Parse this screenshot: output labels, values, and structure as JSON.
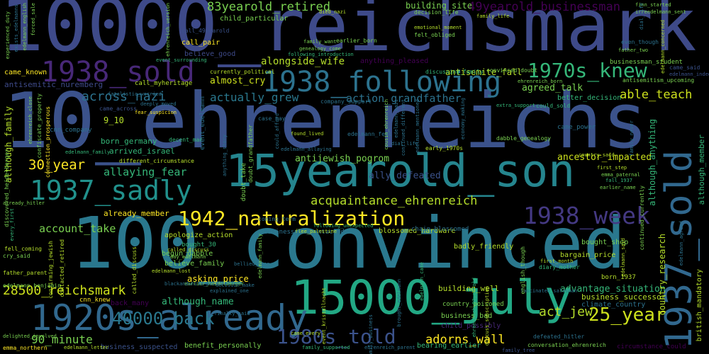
{
  "words": [
    {
      "text": "10000_reichsmark",
      "color": "#3e4a89"
    },
    {
      "text": "10_ehrenreichs",
      "color": "#3b528b"
    },
    {
      "text": "100_convinced",
      "color": "#2a788e"
    },
    {
      "text": "15yearold_son",
      "color": "#25858e"
    },
    {
      "text": "15000_july",
      "color": "#22a884"
    },
    {
      "text": "1920s_already",
      "color": "#31688e"
    },
    {
      "text": "1938_sold",
      "color": "#482878"
    },
    {
      "text": "1938_following",
      "color": "#2c728e"
    },
    {
      "text": "1937_sadly",
      "color": "#21918c"
    },
    {
      "text": "1970s_knew",
      "color": "#35b779"
    },
    {
      "text": "1942_naturalization",
      "color": "#fde725"
    },
    {
      "text": "1938_week",
      "color": "#443983"
    },
    {
      "text": "1937_sold",
      "color": "#31688e"
    },
    {
      "text": "1980s_told",
      "color": "#3b528b"
    },
    {
      "text": "83yearold_retired",
      "color": "#7ad151"
    },
    {
      "text": "49yearold_businessman",
      "color": "#440154"
    },
    {
      "text": "28500_reichsmark",
      "color": "#cde11d"
    },
    {
      "text": "40000_back",
      "color": "#2a788e"
    },
    {
      "text": "25_year",
      "color": "#cde11d"
    },
    {
      "text": "acquaintance_ehrenreich",
      "color": "#b5de2b"
    },
    {
      "text": "alongside_wife",
      "color": "#b5de2b"
    },
    {
      "text": "able_teach",
      "color": "#cde11d"
    },
    {
      "text": "30_year",
      "color": "#fde725"
    },
    {
      "text": "account_take",
      "color": "#7ad151"
    },
    {
      "text": "action_grandfather",
      "color": "#2c728e"
    },
    {
      "text": "actually_grew",
      "color": "#2a788e"
    },
    {
      "text": "across_nazi",
      "color": "#2c728e"
    },
    {
      "text": "allaying_fear",
      "color": "#35b779"
    },
    {
      "text": "adorns_wall",
      "color": "#fde725"
    },
    {
      "text": "act_jew",
      "color": "#b5de2b"
    },
    {
      "text": "90_minute",
      "color": "#7ad151"
    },
    {
      "text": "agreed_talk",
      "color": "#7ad151"
    },
    {
      "text": "almost_cry",
      "color": "#cde11d"
    },
    {
      "text": "although_name",
      "color": "#35b779"
    },
    {
      "text": "advantage_situation",
      "color": "#35b779"
    },
    {
      "text": "antijewish_pogrom",
      "color": "#7ad151"
    },
    {
      "text": "ancestor_impacted",
      "color": "#cde11d"
    },
    {
      "text": "ally_defeated",
      "color": "#3b528b"
    },
    {
      "text": "antisemite_fall",
      "color": "#b5de2b"
    },
    {
      "text": "building_site",
      "color": "#7ad151"
    },
    {
      "text": "child_particular",
      "color": "#7ad151"
    },
    {
      "text": "already_member",
      "color": "#fde725"
    },
    {
      "text": "asking_price",
      "color": "#fde725"
    },
    {
      "text": "bought_shop",
      "color": "#7ad151"
    },
    {
      "text": "business_successor",
      "color": "#b5de2b"
    },
    {
      "text": "climate_country",
      "color": "#2c728e"
    },
    {
      "text": "building_well",
      "color": "#b5de2b"
    },
    {
      "text": "9_10",
      "color": "#b5de2b"
    },
    {
      "text": "born_germany",
      "color": "#35b779"
    },
    {
      "text": "arrived_israel",
      "color": "#35b779"
    },
    {
      "text": "came_known",
      "color": "#fde725"
    },
    {
      "text": "call_myheritage",
      "color": "#b5de2b"
    },
    {
      "text": "better_decision",
      "color": "#35b779"
    },
    {
      "text": "anything_pleased",
      "color": "#440154"
    },
    {
      "text": "antisemitic_nuremberg",
      "color": "#3e4a89"
    },
    {
      "text": "believe_good",
      "color": "#3e4a89"
    },
    {
      "text": "call_pair",
      "color": "#fde725"
    },
    {
      "text": "businessman_student",
      "color": "#7ad151"
    },
    {
      "text": "apologize_action",
      "color": "#b5de2b"
    },
    {
      "text": "begun_dabble",
      "color": "#7ad151"
    },
    {
      "text": "believe_family",
      "color": "#7ad151"
    },
    {
      "text": "bought_30",
      "color": "#35b779"
    },
    {
      "text": "bargain_price",
      "color": "#b5de2b"
    },
    {
      "text": "born_1937",
      "color": "#b5de2b"
    },
    {
      "text": "business_bad",
      "color": "#7ad151"
    },
    {
      "text": "child_possibly",
      "color": "#482878"
    },
    {
      "text": "back_many",
      "color": "#440154"
    },
    {
      "text": "cnn_knew",
      "color": "#fde725"
    },
    {
      "text": "benefit_personally",
      "color": "#7ad151"
    },
    {
      "text": "business_suspected",
      "color": "#3b528b"
    },
    {
      "text": "bearing_earlier",
      "color": "#35b779"
    },
    {
      "text": "circumstance_could",
      "color": "#440154"
    },
    {
      "text": "country_poisoned",
      "color": "#7ad151"
    },
    {
      "text": "blossomed_hardware",
      "color": "#b5de2b"
    },
    {
      "text": "businessman_contacted",
      "color": "#2c728e"
    },
    {
      "text": "badly_friendly",
      "color": "#b5de2b"
    },
    {
      "text": "chain_blossomed",
      "color": "#2c728e"
    },
    {
      "text": "country_research",
      "color": "#b5de2b"
    },
    {
      "text": "emma_northern",
      "color": "#fde725"
    },
    {
      "text": "edelmann_benjamin",
      "color": "#7ad151"
    },
    {
      "text": "defeated_hitler",
      "color": "#2c728e"
    },
    {
      "text": "conversation_ehrenreich",
      "color": "#7ad151"
    },
    {
      "text": "british_mandatory",
      "color": "#b5de2b"
    },
    {
      "text": "although_member",
      "color": "#35b779"
    },
    {
      "text": "although_anything",
      "color": "#35b779"
    },
    {
      "text": "although_family",
      "color": "#b5de2b"
    },
    {
      "text": "cnn_company",
      "color": "#2c728e"
    },
    {
      "text": "came_power",
      "color": "#2c728e"
    },
    {
      "text": "could_sold",
      "color": "#35b779"
    },
    {
      "text": "dabble_genealogy",
      "color": "#7ad151"
    },
    {
      "text": "early_1970s",
      "color": "#b5de2b"
    },
    {
      "text": "edelmann_feel",
      "color": "#2c728e"
    },
    {
      "text": "currently_political",
      "color": "#b5de2b"
    },
    {
      "text": "convinced_doubt",
      "color": "#7ad151"
    },
    {
      "text": "discussing_family",
      "color": "#35b779"
    },
    {
      "text": "decision_life",
      "color": "#7ad151"
    },
    {
      "text": "came_across",
      "color": "#3b528b"
    },
    {
      "text": "call_49yearold",
      "color": "#3b528b"
    },
    {
      "text": "earlier_born",
      "color": "#7ad151"
    },
    {
      "text": "family_want",
      "color": "#7ad151"
    },
    {
      "text": "felt_obliged",
      "color": "#7ad151"
    },
    {
      "text": "company_support",
      "color": "#2c728e"
    },
    {
      "text": "came_said",
      "color": "#3b528b"
    },
    {
      "text": "edelmann_indeed",
      "color": "#3b528b"
    },
    {
      "text": "antisemitism_upcoming",
      "color": "#7ad151"
    },
    {
      "text": "extra_support",
      "color": "#35b779"
    },
    {
      "text": "case_may",
      "color": "#2c728e"
    },
    {
      "text": "decent_man",
      "color": "#35b779"
    },
    {
      "text": "edelmann_family",
      "color": "#35b779"
    },
    {
      "text": "coming_term",
      "color": "#2c728e"
    },
    {
      "text": "discovered_heidelberger",
      "color": "#7ad151"
    },
    {
      "text": "emma_paternal",
      "color": "#7ad151"
    },
    {
      "text": "first_step",
      "color": "#b5de2b"
    },
    {
      "text": "earlier_name",
      "color": "#7ad151"
    },
    {
      "text": "country_said",
      "color": "#b5de2b"
    },
    {
      "text": "fall_1937",
      "color": "#35b779"
    },
    {
      "text": "continued_currently",
      "color": "#7ad151"
    },
    {
      "text": "different_circumstance",
      "color": "#b5de2b"
    },
    {
      "text": "fear_suspicion",
      "color": "#fde725"
    },
    {
      "text": "event_surrounding",
      "color": "#35b779"
    },
    {
      "text": "connection_prosperous",
      "color": "#fde725"
    },
    {
      "text": "confiscate_property",
      "color": "#7ad151"
    },
    {
      "text": "ehrenreich_close",
      "color": "#7ad151"
    },
    {
      "text": "edelmann_english",
      "color": "#7ad151"
    },
    {
      "text": "ehrenreich_version",
      "color": "#7ad151"
    },
    {
      "text": "contacted_retired",
      "color": "#b5de2b"
    },
    {
      "text": "confirming_jewish",
      "color": "#b5de2b"
    },
    {
      "text": "called_discuss",
      "color": "#b5de2b"
    },
    {
      "text": "day_edelmann",
      "color": "#7ad151"
    },
    {
      "text": "edelmann_lost",
      "color": "#b5de2b"
    },
    {
      "text": "earlier_heidelberger",
      "color": "#7ad151"
    },
    {
      "text": "decision_make",
      "color": "#2c728e"
    },
    {
      "text": "explained_one",
      "color": "#2c728e"
    },
    {
      "text": "fell_coming",
      "color": "#b5de2b"
    },
    {
      "text": "cry_said",
      "color": "#7ad151"
    },
    {
      "text": "father_parent",
      "color": "#b5de2b"
    },
    {
      "text": "diary_mother",
      "color": "#35b779"
    },
    {
      "text": "first_month",
      "color": "#b5de2b"
    },
    {
      "text": "edelmann_said",
      "color": "#b5de2b"
    },
    {
      "text": "english_though",
      "color": "#7ad151"
    },
    {
      "text": "edelmann_agreed",
      "color": "#2c728e"
    },
    {
      "text": "ehrenreich_83yearold",
      "color": "#35b779"
    },
    {
      "text": "fascinated_salesman",
      "color": "#2c728e"
    },
    {
      "text": "edelmann_came",
      "color": "#35b779"
    },
    {
      "text": "event_kristallnacht",
      "color": "#b5de2b"
    },
    {
      "text": "came_every",
      "color": "#b5de2b"
    },
    {
      "text": "family_supported",
      "color": "#35b779"
    },
    {
      "text": "ehrenreich_parent",
      "color": "#2c728e"
    },
    {
      "text": "family_tree",
      "color": "#3b528b"
    },
    {
      "text": "discuss_subscription",
      "color": "#b5de2b"
    },
    {
      "text": "delighted_involved",
      "color": "#7ad151"
    },
    {
      "text": "edelmann_letter",
      "color": "#b5de2b"
    },
    {
      "text": "following_unexpected",
      "color": "#35b779"
    },
    {
      "text": "flee_palestine",
      "color": "#b5de2b"
    },
    {
      "text": "edelmann_family",
      "color": "#7ad151"
    },
    {
      "text": "every_first",
      "color": "#35b779"
    },
    {
      "text": "family_business",
      "color": "#2c728e"
    },
    {
      "text": "fatalistic_worried",
      "color": "#2c728e"
    },
    {
      "text": "deeply_moved",
      "color": "#2c728e"
    },
    {
      "text": "found_lived",
      "color": "#b5de2b"
    },
    {
      "text": "finn_started",
      "color": "#7ad151"
    },
    {
      "text": "irreedelmann_sent",
      "color": "#7ad151"
    },
    {
      "text": "even_though",
      "color": "#2c728e"
    },
    {
      "text": "father_two",
      "color": "#7ad151"
    },
    {
      "text": "family_life",
      "color": "#b5de2b"
    },
    {
      "text": "died_nazi",
      "color": "#b5de2b"
    },
    {
      "text": "genealogy_come",
      "color": "#7ad151"
    },
    {
      "text": "following_introduction",
      "color": "#35b779"
    },
    {
      "text": "exists_edelmanns",
      "color": "#2c728e"
    },
    {
      "text": "experienced_duty",
      "color": "#7ad151"
    },
    {
      "text": "forced_sale",
      "color": "#7ad151"
    },
    {
      "text": "edelmann_mentioned",
      "color": "#2c728e"
    },
    {
      "text": "emotional_moment",
      "color": "#b5de2b"
    },
    {
      "text": "edelmann_allaying",
      "color": "#2c728e"
    },
    {
      "text": "ehrenreich_born",
      "color": "#7ad151"
    },
    {
      "text": "doubt_take",
      "color": "#7ad151"
    },
    {
      "text": "event_edelmann",
      "color": "#2c728e"
    },
    {
      "text": "doubt_grandfather",
      "color": "#7ad151"
    },
    {
      "text": "anything_story",
      "color": "#2c728e"
    },
    {
      "text": "blackandwhite_picture",
      "color": "#2c728e"
    },
    {
      "text": "continued_different",
      "color": "#2c728e"
    },
    {
      "text": "edelmann_heard",
      "color": "#2c728e"
    },
    {
      "text": "already_hitler",
      "color": "#7ad151"
    },
    {
      "text": "family_never",
      "color": "#2c728e"
    },
    {
      "text": "dial_life",
      "color": "#2c728e"
    },
    {
      "text": "edelmann_concerned",
      "color": "#b5de2b"
    },
    {
      "text": "could_afford",
      "color": "#2c728e"
    },
    {
      "text": "economy_making",
      "color": "#2c728e"
    },
    {
      "text": "finally_said",
      "color": "#2c728e"
    },
    {
      "text": "brought_edelmann",
      "color": "#2c728e"
    },
    {
      "text": "bellied_finn",
      "color": "#2c728e"
    },
    {
      "text": "edelmann_nazi",
      "color": "#2c728e"
    },
    {
      "text": "cousin_ehrenreich",
      "color": "#7ad151"
    },
    {
      "text": "edelmann_say",
      "color": "#7ad151"
    },
    {
      "text": "ended_family",
      "color": "#2c728e"
    },
    {
      "text": "family_ehrenreich",
      "color": "#7ad151"
    }
  ]
}
